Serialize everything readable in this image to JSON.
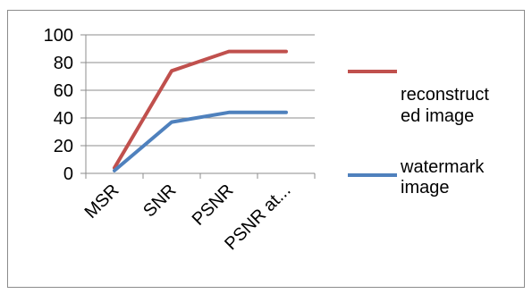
{
  "chart_data": {
    "type": "line",
    "categories": [
      "MSR",
      "SNR",
      "PSNR",
      "PSNR at..."
    ],
    "series": [
      {
        "name": "reconstructed image",
        "values": [
          4,
          74,
          88,
          88
        ],
        "color": "#c0504d"
      },
      {
        "name": "watermark image",
        "values": [
          2,
          37,
          44,
          44
        ],
        "color": "#4f81bd"
      }
    ],
    "legend_lines": [
      {
        "lines": [
          "",
          "reconstruct",
          "ed image"
        ]
      },
      {
        "lines": [
          "watermark",
          "image"
        ]
      }
    ],
    "ylim": [
      0,
      100
    ],
    "yticks": [
      0,
      20,
      40,
      60,
      80,
      100
    ],
    "grid": true,
    "legend_position": "right",
    "title": "",
    "xlabel": "",
    "ylabel": ""
  }
}
